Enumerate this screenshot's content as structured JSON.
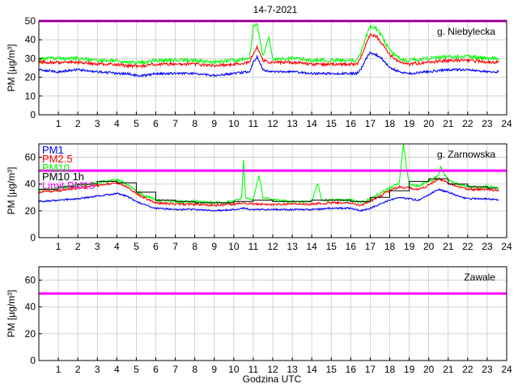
{
  "title": "14-7-2021",
  "xlabel": "Godzina UTC",
  "colors": {
    "pm1": "#0000ff",
    "pm25": "#ff0000",
    "pm10": "#00ff00",
    "pm10_1h": "#000000",
    "limit": "#ff00ff",
    "grid": "#c8c8c8"
  },
  "chart_data": [
    {
      "type": "line",
      "station": "g. Niebylecka",
      "ylabel": "PM [µg/m³]",
      "xlim": [
        0,
        24
      ],
      "ylim": [
        0,
        50
      ],
      "xticks": [
        1,
        2,
        3,
        4,
        5,
        6,
        7,
        8,
        9,
        10,
        11,
        12,
        13,
        14,
        15,
        16,
        17,
        18,
        19,
        20,
        21,
        22,
        23,
        24
      ],
      "yticks": [
        0,
        10,
        20,
        30,
        40,
        50
      ],
      "grid": true,
      "limit_pm10": 50,
      "series": [
        {
          "key": "pm1",
          "x": [
            0,
            1,
            2,
            3,
            4,
            4.5,
            5,
            5.5,
            6,
            7,
            8,
            9,
            10,
            10.8,
            11,
            11.2,
            11.5,
            11.8,
            12,
            13,
            14,
            15,
            16,
            16.3,
            16.5,
            16.8,
            17,
            17.3,
            17.6,
            18,
            18.5,
            19,
            20,
            21,
            22,
            23,
            23.6
          ],
          "y": [
            24,
            23,
            24,
            23,
            22,
            22,
            21,
            21,
            22,
            22,
            22,
            21,
            22,
            23,
            28,
            31,
            24,
            23,
            23,
            23,
            22,
            22,
            22,
            22,
            24,
            30,
            33,
            32,
            30,
            25,
            23,
            22,
            23,
            24,
            24,
            23,
            23
          ]
        },
        {
          "key": "pm25",
          "x": [
            0,
            1,
            2,
            3,
            4,
            4.5,
            5,
            5.5,
            6,
            7,
            8,
            9,
            10,
            10.8,
            11,
            11.2,
            11.5,
            11.8,
            12,
            13,
            14,
            15,
            16,
            16.3,
            16.5,
            16.8,
            17,
            17.3,
            17.6,
            18,
            18.5,
            19,
            20,
            21,
            22,
            23,
            23.6
          ],
          "y": [
            28,
            28,
            28,
            27,
            27,
            26,
            26,
            26,
            27,
            27,
            27,
            26,
            27,
            28,
            33,
            36,
            29,
            28,
            28,
            28,
            27,
            27,
            27,
            27,
            30,
            38,
            43,
            42,
            38,
            32,
            28,
            27,
            28,
            29,
            29,
            28,
            28
          ]
        },
        {
          "key": "pm10",
          "x": [
            0,
            1,
            2,
            3,
            4,
            4.5,
            5,
            5.5,
            6,
            7,
            8,
            9,
            10,
            10.8,
            11,
            11.2,
            11.5,
            11.8,
            12,
            13,
            14,
            15,
            16,
            16.3,
            16.5,
            16.8,
            17,
            17.3,
            17.6,
            18,
            18.5,
            19,
            20,
            21,
            22,
            23,
            23.6
          ],
          "y": [
            30,
            30,
            30,
            29,
            29,
            28,
            28,
            28,
            29,
            29,
            29,
            28,
            29,
            30,
            47,
            48,
            31,
            42,
            30,
            30,
            29,
            29,
            29,
            29,
            33,
            42,
            47,
            46,
            42,
            34,
            30,
            29,
            30,
            31,
            31,
            30,
            30
          ]
        }
      ]
    },
    {
      "type": "line",
      "station": "g. Zarnowska",
      "ylabel": "PM [µg/m³]",
      "xlim": [
        0,
        24
      ],
      "ylim": [
        0,
        70
      ],
      "xticks": [
        1,
        2,
        3,
        4,
        5,
        6,
        7,
        8,
        9,
        10,
        11,
        12,
        13,
        14,
        15,
        16,
        17,
        18,
        19,
        20,
        21,
        22,
        23,
        24
      ],
      "yticks": [
        0,
        20,
        40,
        60
      ],
      "grid": true,
      "limit_pm10": 50,
      "legend": [
        "PM1",
        "PM2.5",
        "PM10",
        "PM10 1h",
        "Limit PM10"
      ],
      "legend_position": "top-left",
      "series": [
        {
          "name": "PM1",
          "key": "pm1",
          "x": [
            0,
            1,
            2,
            3,
            4,
            4.5,
            5,
            5.5,
            6,
            7,
            8,
            9,
            10,
            10.5,
            11,
            12,
            13,
            14,
            15,
            16,
            16.5,
            17,
            17.5,
            18,
            18.5,
            19,
            19.5,
            20,
            20.5,
            21,
            21.5,
            22,
            23,
            23.6
          ],
          "y": [
            27,
            28,
            29,
            31,
            33,
            31,
            27,
            24,
            22,
            21,
            21,
            20,
            21,
            22,
            21,
            21,
            21,
            21,
            22,
            22,
            20,
            22,
            25,
            28,
            30,
            29,
            28,
            32,
            36,
            34,
            31,
            29,
            29,
            28
          ]
        },
        {
          "name": "PM2.5",
          "key": "pm25",
          "x": [
            0,
            1,
            2,
            3,
            4,
            4.5,
            5,
            5.5,
            6,
            7,
            8,
            9,
            10,
            10.5,
            11,
            12,
            13,
            14,
            15,
            16,
            16.5,
            17,
            17.5,
            18,
            18.5,
            19,
            19.5,
            20,
            20.5,
            21,
            21.5,
            22,
            23,
            23.6
          ],
          "y": [
            34,
            35,
            37,
            39,
            41,
            38,
            33,
            29,
            26,
            25,
            25,
            24,
            25,
            26,
            25,
            25,
            25,
            25,
            26,
            26,
            24,
            27,
            31,
            35,
            38,
            37,
            36,
            39,
            44,
            41,
            38,
            36,
            36,
            35
          ]
        },
        {
          "name": "PM10",
          "key": "pm10",
          "x": [
            0,
            1,
            2,
            3,
            4,
            4.5,
            5,
            5.5,
            6,
            7,
            8,
            9,
            10,
            10.4,
            10.5,
            10.6,
            11,
            11.3,
            11.5,
            12,
            13,
            14,
            14.3,
            14.5,
            15,
            16,
            16.5,
            17,
            17.5,
            18,
            18.5,
            18.7,
            18.9,
            19,
            19.5,
            20,
            20.5,
            20.6,
            21,
            21.5,
            22,
            23,
            23.6
          ],
          "y": [
            36,
            37,
            39,
            41,
            43,
            40,
            35,
            31,
            28,
            27,
            27,
            26,
            27,
            30,
            58,
            30,
            28,
            47,
            30,
            28,
            27,
            27,
            41,
            28,
            28,
            28,
            26,
            29,
            33,
            37,
            41,
            70,
            48,
            40,
            39,
            42,
            46,
            53,
            43,
            40,
            38,
            38,
            37
          ]
        },
        {
          "name": "PM10 1h",
          "key": "pm10_1h",
          "step": true,
          "x": [
            0,
            1,
            2,
            3,
            4,
            5,
            6,
            7,
            8,
            9,
            10,
            11,
            12,
            13,
            14,
            15,
            16,
            17,
            18,
            19,
            20,
            21,
            22,
            23
          ],
          "y": [
            36,
            38,
            40,
            42,
            41,
            34,
            28,
            27,
            26,
            26,
            27,
            28,
            27,
            27,
            28,
            28,
            27,
            30,
            35,
            42,
            44,
            40,
            38,
            37
          ]
        }
      ]
    },
    {
      "type": "line",
      "station": "Zawale",
      "ylabel": "PM [µg/m³]",
      "xlim": [
        0,
        24
      ],
      "ylim": [
        0,
        70
      ],
      "xticks": [
        1,
        2,
        3,
        4,
        5,
        6,
        7,
        8,
        9,
        10,
        11,
        12,
        13,
        14,
        15,
        16,
        17,
        18,
        19,
        20,
        21,
        22,
        23,
        24
      ],
      "yticks": [
        0,
        20,
        40,
        60
      ],
      "grid": true,
      "limit_pm10": 50,
      "series": []
    }
  ]
}
